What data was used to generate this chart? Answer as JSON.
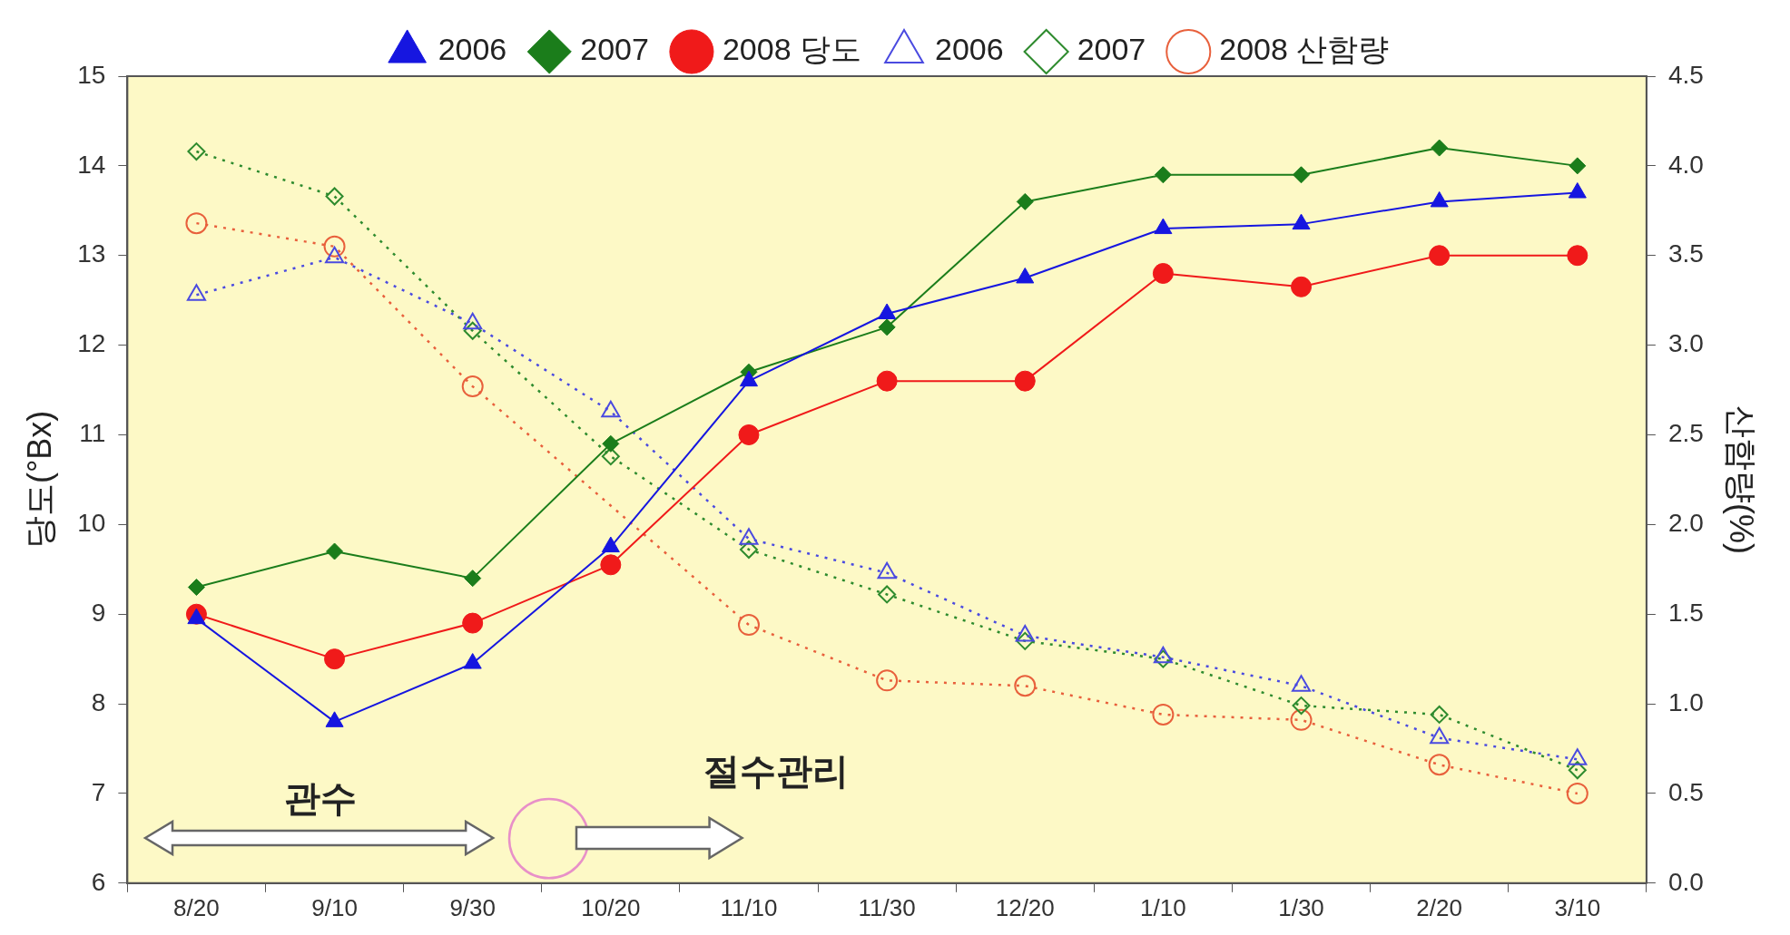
{
  "chart_data": {
    "type": "line",
    "ylabel": "당도(°Bx)",
    "y2label": "산함량(%)",
    "categories": [
      "8/20",
      "9/10",
      "9/30",
      "10/20",
      "11/10",
      "11/30",
      "12/20",
      "1/10",
      "1/30",
      "2/20",
      "3/10"
    ],
    "series": [
      {
        "name": "2006",
        "color": "#1616e0",
        "marker": "triangle",
        "line_style": "solid",
        "values": [
          8.95,
          7.8,
          8.45,
          9.75,
          11.6,
          12.35,
          12.75,
          13.3,
          13.35,
          13.6,
          13.7
        ]
      },
      {
        "name": "2007",
        "color": "#1b7d1b",
        "marker": "diamond",
        "line_style": "solid",
        "values": [
          9.3,
          9.7,
          9.4,
          10.9,
          11.7,
          12.2,
          13.6,
          13.9,
          13.9,
          14.2,
          14.0
        ]
      },
      {
        "name": "2008 당도",
        "color": "#f01a1a",
        "marker": "circle",
        "line_style": "solid",
        "values": [
          9.0,
          8.5,
          8.9,
          9.55,
          11.0,
          11.6,
          11.6,
          12.8,
          12.65,
          13.0,
          13.0
        ]
      },
      {
        "name": "2006",
        "color": "#4a4ae0",
        "marker": "triangle",
        "line_style": "dotted",
        "axis": "y2",
        "values": [
          3.28,
          3.49,
          3.12,
          2.63,
          1.92,
          1.73,
          1.38,
          1.26,
          1.1,
          0.81,
          0.69
        ]
      },
      {
        "name": "2007",
        "color": "#2e8b2e",
        "marker": "diamond",
        "line_style": "dotted",
        "axis": "y2",
        "values": [
          4.08,
          3.83,
          3.08,
          2.38,
          1.86,
          1.61,
          1.35,
          1.25,
          0.99,
          0.94,
          0.63
        ]
      },
      {
        "name": "2008 산함량",
        "color": "#e8603c",
        "marker": "circle",
        "line_style": "dotted",
        "axis": "y2",
        "values": [
          3.68,
          3.55,
          2.77,
          null,
          1.44,
          1.13,
          1.1,
          0.94,
          0.91,
          0.66,
          0.5
        ]
      }
    ],
    "ylim": [
      6,
      15
    ],
    "yticks": [
      6,
      7,
      8,
      9,
      10,
      11,
      12,
      13,
      14,
      15
    ],
    "y2lim": [
      0,
      4.5
    ],
    "y2ticks": [
      {
        "value": 0,
        "label": "0.0"
      },
      0.5,
      {
        "value": 1,
        "label": "1.0"
      },
      1.5,
      {
        "value": 2,
        "label": "2.0"
      },
      2.5,
      {
        "value": 3,
        "label": "3.0"
      },
      3.5,
      {
        "value": 4,
        "label": "4.0"
      },
      4.5
    ],
    "annotations": [
      "관수",
      "절수관리"
    ],
    "grid": false,
    "legend": "top"
  }
}
